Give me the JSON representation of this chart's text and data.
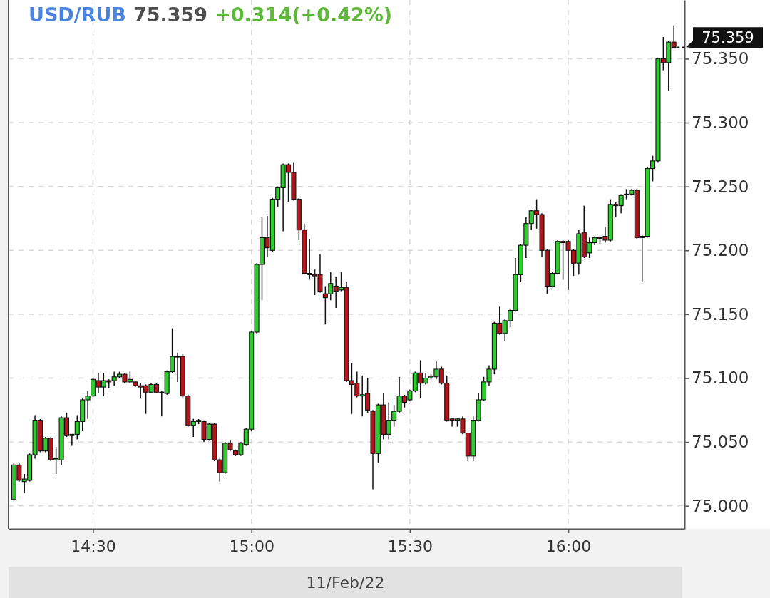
{
  "chart_data": {
    "type": "candlestick",
    "title": "USD/RUB",
    "subtitle": "75.359",
    "annotations": [
      "+0.314(+0.42%)",
      {
        "text": "75.359",
        "x": 16.3333,
        "y": 75.359
      }
    ],
    "xlabel": "11/Feb/22",
    "x": [
      14.25,
      14.2667,
      14.2833,
      14.3,
      14.3167,
      14.3333,
      14.35,
      14.3667,
      14.3833,
      14.4,
      14.4167,
      14.4333,
      14.45,
      14.4667,
      14.4833,
      14.5,
      14.5167,
      14.5333,
      14.55,
      14.5667,
      14.5833,
      14.6,
      14.6167,
      14.6333,
      14.65,
      14.6667,
      14.6833,
      14.7,
      14.7167,
      14.7333,
      14.75,
      14.7667,
      14.7833,
      14.8,
      14.8167,
      14.8333,
      14.85,
      14.8667,
      14.8833,
      14.9,
      14.9167,
      14.9333,
      14.95,
      14.9667,
      14.9833,
      15,
      15.0167,
      15.0333,
      15.05,
      15.0667,
      15.0833,
      15.1,
      15.1167,
      15.1333,
      15.15,
      15.1667,
      15.1833,
      15.2,
      15.2167,
      15.2333,
      15.25,
      15.2667,
      15.2833,
      15.3,
      15.3167,
      15.3333,
      15.35,
      15.3667,
      15.3833,
      15.4,
      15.4167,
      15.4333,
      15.45,
      15.4667,
      15.4833,
      15.5,
      15.5167,
      15.5333,
      15.55,
      15.5667,
      15.5833,
      15.6,
      15.6167,
      15.6333,
      15.65,
      15.6667,
      15.6833,
      15.7,
      15.7167,
      15.7333,
      15.75,
      15.7667,
      15.7833,
      15.8,
      15.8167,
      15.8333,
      15.85,
      15.8667,
      15.8833,
      15.9,
      15.9167,
      15.9333,
      15.95,
      15.9667,
      15.9833,
      16,
      16.0167,
      16.0333,
      16.05,
      16.0667,
      16.0833,
      16.1,
      16.1167,
      16.1333,
      16.15,
      16.1667,
      16.1833,
      16.2,
      16.2167,
      16.2333,
      16.25,
      16.2667,
      16.2833,
      16.3,
      16.3167,
      16.3333
    ],
    "ohlc": [
      [
        75.005,
        75.034,
        75.004,
        75.032
      ],
      [
        75.032,
        75.034,
        75.019,
        75.02
      ],
      [
        75.019,
        75.025,
        75.01,
        75.021
      ],
      [
        75.02,
        75.041,
        75.019,
        75.04
      ],
      [
        75.04,
        75.071,
        75.037,
        75.067
      ],
      [
        75.067,
        75.068,
        75.042,
        75.043
      ],
      [
        75.043,
        75.054,
        75.042,
        75.053
      ],
      [
        75.053,
        75.054,
        75.035,
        75.036
      ],
      [
        75.036,
        75.046,
        75.025,
        75.037
      ],
      [
        75.036,
        75.07,
        75.032,
        75.069
      ],
      [
        75.069,
        75.073,
        75.054,
        75.055
      ],
      [
        75.055,
        75.056,
        75.047,
        75.056
      ],
      [
        75.056,
        75.071,
        75.052,
        75.066
      ],
      [
        75.066,
        75.084,
        75.059,
        75.083
      ],
      [
        75.083,
        75.09,
        75.068,
        75.086
      ],
      [
        75.086,
        75.1,
        75.085,
        75.099
      ],
      [
        75.098,
        75.104,
        75.088,
        75.093
      ],
      [
        75.093,
        75.104,
        75.086,
        75.098
      ],
      [
        75.098,
        75.099,
        75.092,
        75.097
      ],
      [
        75.098,
        75.105,
        75.094,
        75.101
      ],
      [
        75.101,
        75.105,
        75.1,
        75.103
      ],
      [
        75.103,
        75.104,
        75.096,
        75.097
      ],
      [
        75.097,
        75.105,
        75.096,
        75.099
      ],
      [
        75.097,
        75.098,
        75.093,
        75.094
      ],
      [
        75.094,
        75.096,
        75.084,
        75.093
      ],
      [
        75.094,
        75.095,
        75.072,
        75.089
      ],
      [
        75.089,
        75.096,
        75.088,
        75.095
      ],
      [
        75.095,
        75.096,
        75.088,
        75.089
      ],
      [
        75.089,
        75.09,
        75.07,
        75.089
      ],
      [
        75.088,
        75.106,
        75.087,
        75.105
      ],
      [
        75.105,
        75.139,
        75.104,
        75.117
      ],
      [
        75.117,
        75.12,
        75.097,
        75.117
      ],
      [
        75.117,
        75.119,
        75.085,
        75.086
      ],
      [
        75.086,
        75.087,
        75.062,
        75.063
      ],
      [
        75.063,
        75.068,
        75.054,
        75.066
      ],
      [
        75.066,
        75.068,
        75.064,
        75.067
      ],
      [
        75.066,
        75.067,
        75.05,
        75.052
      ],
      [
        75.052,
        75.065,
        75.051,
        75.064
      ],
      [
        75.064,
        75.065,
        75.035,
        75.036
      ],
      [
        75.036,
        75.037,
        75.019,
        75.026
      ],
      [
        75.026,
        75.05,
        75.025,
        75.049
      ],
      [
        75.049,
        75.051,
        75.043,
        75.044
      ],
      [
        75.043,
        75.044,
        75.039,
        75.04
      ],
      [
        75.04,
        75.05,
        75.039,
        75.049
      ],
      [
        75.048,
        75.061,
        75.047,
        75.06
      ],
      [
        75.06,
        75.137,
        75.059,
        75.136
      ],
      [
        75.136,
        75.19,
        75.135,
        75.189
      ],
      [
        75.189,
        75.226,
        75.161,
        75.21
      ],
      [
        75.21,
        75.227,
        75.195,
        75.202
      ],
      [
        75.2,
        75.241,
        75.199,
        75.24
      ],
      [
        75.24,
        75.25,
        75.234,
        75.249
      ],
      [
        75.249,
        75.268,
        75.215,
        75.267
      ],
      [
        75.267,
        75.268,
        75.238,
        75.261
      ],
      [
        75.261,
        75.269,
        75.239,
        75.24
      ],
      [
        75.24,
        75.241,
        75.208,
        75.216
      ],
      [
        75.216,
        75.221,
        75.181,
        75.182
      ],
      [
        75.182,
        75.209,
        75.177,
        75.181
      ],
      [
        75.181,
        75.185,
        75.165,
        75.18
      ],
      [
        75.181,
        75.197,
        75.167,
        75.168
      ],
      [
        75.166,
        75.172,
        75.142,
        75.163
      ],
      [
        75.166,
        75.183,
        75.161,
        75.174
      ],
      [
        75.172,
        75.179,
        75.155,
        75.168
      ],
      [
        75.169,
        75.183,
        75.168,
        75.171
      ],
      [
        75.171,
        75.175,
        75.097,
        75.098
      ],
      [
        75.098,
        75.112,
        75.072,
        75.095
      ],
      [
        75.096,
        75.105,
        75.085,
        75.086
      ],
      [
        75.086,
        75.102,
        75.07,
        75.087
      ],
      [
        75.088,
        75.1,
        75.073,
        75.075
      ],
      [
        75.074,
        75.075,
        75.013,
        75.041
      ],
      [
        75.041,
        75.08,
        75.034,
        75.079
      ],
      [
        75.079,
        75.088,
        75.052,
        75.056
      ],
      [
        75.056,
        75.081,
        75.052,
        75.067
      ],
      [
        75.067,
        75.079,
        75.062,
        75.074
      ],
      [
        75.074,
        75.101,
        75.073,
        75.086
      ],
      [
        75.086,
        75.087,
        75.077,
        75.081
      ],
      [
        75.083,
        75.091,
        75.082,
        75.09
      ],
      [
        75.09,
        75.105,
        75.089,
        75.104
      ],
      [
        75.104,
        75.114,
        75.084,
        75.096
      ],
      [
        75.096,
        75.104,
        75.095,
        75.1
      ],
      [
        75.1,
        75.103,
        75.099,
        75.101
      ],
      [
        75.101,
        75.113,
        75.099,
        75.107
      ],
      [
        75.107,
        75.109,
        75.095,
        75.096
      ],
      [
        75.096,
        75.102,
        75.066,
        75.067
      ],
      [
        75.068,
        75.069,
        75.062,
        75.067
      ],
      [
        75.067,
        75.069,
        75.062,
        75.068
      ],
      [
        75.068,
        75.07,
        75.056,
        75.057
      ],
      [
        75.057,
        75.057,
        75.035,
        75.039
      ],
      [
        75.039,
        75.07,
        75.035,
        75.067
      ],
      [
        75.067,
        75.088,
        75.066,
        75.083
      ],
      [
        75.083,
        75.101,
        75.082,
        75.097
      ],
      [
        75.097,
        75.11,
        75.094,
        75.107
      ],
      [
        75.107,
        75.144,
        75.103,
        75.143
      ],
      [
        75.143,
        75.156,
        75.134,
        75.135
      ],
      [
        75.135,
        75.146,
        75.129,
        75.145
      ],
      [
        75.145,
        75.154,
        75.14,
        75.153
      ],
      [
        75.153,
        75.194,
        75.152,
        75.181
      ],
      [
        75.181,
        75.205,
        75.175,
        75.204
      ],
      [
        75.204,
        75.226,
        75.194,
        75.221
      ],
      [
        75.221,
        75.232,
        75.216,
        75.231
      ],
      [
        75.231,
        75.24,
        75.217,
        75.228
      ],
      [
        75.228,
        75.229,
        75.195,
        75.2
      ],
      [
        75.2,
        75.201,
        75.166,
        75.172
      ],
      [
        75.172,
        75.183,
        75.171,
        75.182
      ],
      [
        75.182,
        75.208,
        75.181,
        75.207
      ],
      [
        75.207,
        75.208,
        75.177,
        75.206
      ],
      [
        75.207,
        75.208,
        75.169,
        75.2
      ],
      [
        75.2,
        75.201,
        75.18,
        75.19
      ],
      [
        75.19,
        75.216,
        75.181,
        75.213
      ],
      [
        75.214,
        75.235,
        75.194,
        75.195
      ],
      [
        75.198,
        75.21,
        75.194,
        75.206
      ],
      [
        75.206,
        75.211,
        75.204,
        75.21
      ],
      [
        75.21,
        75.211,
        75.205,
        75.21
      ],
      [
        75.211,
        75.218,
        75.206,
        75.208
      ],
      [
        75.208,
        75.24,
        75.207,
        75.236
      ],
      [
        75.236,
        75.238,
        75.226,
        75.235
      ],
      [
        75.235,
        75.244,
        75.229,
        75.243
      ],
      [
        75.244,
        75.248,
        75.24,
        75.244
      ],
      [
        75.244,
        75.248,
        75.243,
        75.247
      ],
      [
        75.247,
        75.248,
        75.209,
        75.21
      ],
      [
        75.21,
        75.212,
        75.175,
        75.211
      ],
      [
        75.211,
        75.265,
        75.21,
        75.264
      ],
      [
        75.264,
        75.274,
        75.254,
        75.27
      ],
      [
        75.27,
        75.351,
        75.269,
        75.35
      ],
      [
        75.35,
        75.367,
        75.341,
        75.347
      ],
      [
        75.347,
        75.364,
        75.325,
        75.363
      ],
      [
        75.363,
        75.376,
        75.358,
        75.359
      ]
    ],
    "xlim": [
      14.2333,
      16.3667
    ],
    "xticks": [
      {
        "value": 14.5,
        "label": "14:30"
      },
      {
        "value": 15,
        "label": "15:00"
      },
      {
        "value": 15.5,
        "label": "15:30"
      },
      {
        "value": 16,
        "label": "16:00"
      }
    ],
    "ylim": [
      74.982,
      75.396
    ],
    "yticks": [
      {
        "value": 75,
        "label": "75.000"
      },
      {
        "value": 75.05,
        "label": "75.050"
      },
      {
        "value": 75.1,
        "label": "75.100"
      },
      {
        "value": 75.15,
        "label": "75.150"
      },
      {
        "value": 75.2,
        "label": "75.200"
      },
      {
        "value": 75.25,
        "label": "75.250"
      },
      {
        "value": 75.3,
        "label": "75.300"
      },
      {
        "value": 75.35,
        "label": "75.350"
      }
    ],
    "grid": true
  }
}
